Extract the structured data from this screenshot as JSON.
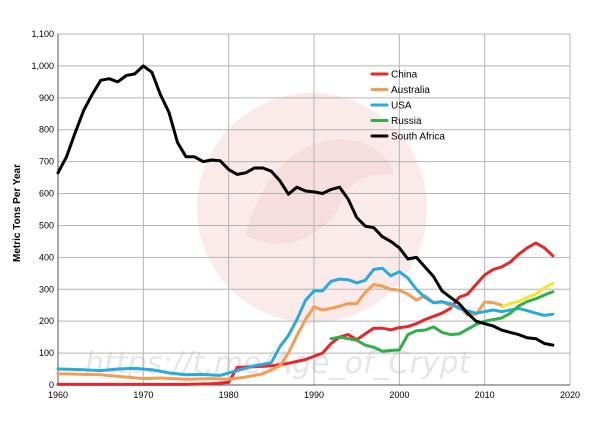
{
  "chart_data": {
    "type": "line",
    "title": "",
    "xlabel": "",
    "ylabel": "Metric Tons Per Year",
    "xlim": [
      1960,
      2020
    ],
    "ylim": [
      0,
      1100
    ],
    "x_ticks": [
      "1960",
      "1970",
      "1980",
      "1990",
      "2000",
      "2010",
      "2020"
    ],
    "y_ticks": [
      "0",
      "100",
      "200",
      "300",
      "400",
      "500",
      "600",
      "700",
      "800",
      "900",
      "1,000",
      "1,100"
    ],
    "grid": true,
    "legend_position": "top-right",
    "watermark": "https://t.me/Age_of_Crypt",
    "series": [
      {
        "name": "China",
        "color": "#e8262a",
        "points": [
          [
            1960,
            2
          ],
          [
            1965,
            2
          ],
          [
            1970,
            2
          ],
          [
            1975,
            2
          ],
          [
            1978,
            4
          ],
          [
            1980,
            8
          ],
          [
            1981,
            55
          ],
          [
            1983,
            57
          ],
          [
            1985,
            60
          ],
          [
            1987,
            68
          ],
          [
            1989,
            80
          ],
          [
            1991,
            100
          ],
          [
            1992,
            130
          ],
          [
            1993,
            150
          ],
          [
            1994,
            158
          ],
          [
            1995,
            142
          ],
          [
            1996,
            160
          ],
          [
            1997,
            178
          ],
          [
            1998,
            178
          ],
          [
            1999,
            173
          ],
          [
            2000,
            180
          ],
          [
            2001,
            183
          ],
          [
            2002,
            192
          ],
          [
            2003,
            205
          ],
          [
            2004,
            215
          ],
          [
            2005,
            225
          ],
          [
            2006,
            240
          ],
          [
            2007,
            275
          ],
          [
            2008,
            285
          ],
          [
            2009,
            315
          ],
          [
            2010,
            345
          ],
          [
            2011,
            362
          ],
          [
            2012,
            370
          ],
          [
            2013,
            385
          ],
          [
            2014,
            410
          ],
          [
            2015,
            430
          ],
          [
            2016,
            445
          ],
          [
            2017,
            430
          ],
          [
            2018,
            405
          ]
        ]
      },
      {
        "name": "Australia",
        "color": "#f39c52",
        "points": [
          [
            1960,
            35
          ],
          [
            1965,
            32
          ],
          [
            1970,
            20
          ],
          [
            1972,
            22
          ],
          [
            1975,
            18
          ],
          [
            1978,
            20
          ],
          [
            1980,
            18
          ],
          [
            1982,
            25
          ],
          [
            1984,
            35
          ],
          [
            1986,
            60
          ],
          [
            1987,
            100
          ],
          [
            1988,
            155
          ],
          [
            1989,
            205
          ],
          [
            1990,
            245
          ],
          [
            1991,
            235
          ],
          [
            1992,
            240
          ],
          [
            1993,
            247
          ],
          [
            1994,
            255
          ],
          [
            1995,
            255
          ],
          [
            1996,
            290
          ],
          [
            1997,
            315
          ],
          [
            1998,
            310
          ],
          [
            1999,
            300
          ],
          [
            2000,
            297
          ],
          [
            2001,
            285
          ],
          [
            2002,
            266
          ],
          [
            2003,
            280
          ],
          [
            2004,
            258
          ],
          [
            2005,
            262
          ],
          [
            2006,
            248
          ],
          [
            2007,
            246
          ],
          [
            2008,
            218
          ],
          [
            2009,
            222
          ],
          [
            2010,
            260
          ],
          [
            2011,
            258
          ],
          [
            2012,
            250
          ]
        ]
      },
      {
        "name": "USA",
        "color": "#2aa9e0",
        "points": [
          [
            1960,
            50
          ],
          [
            1963,
            48
          ],
          [
            1965,
            45
          ],
          [
            1967,
            50
          ],
          [
            1969,
            52
          ],
          [
            1971,
            48
          ],
          [
            1973,
            38
          ],
          [
            1975,
            32
          ],
          [
            1977,
            33
          ],
          [
            1979,
            30
          ],
          [
            1981,
            45
          ],
          [
            1983,
            60
          ],
          [
            1985,
            70
          ],
          [
            1986,
            120
          ],
          [
            1987,
            155
          ],
          [
            1988,
            205
          ],
          [
            1989,
            265
          ],
          [
            1990,
            295
          ],
          [
            1991,
            295
          ],
          [
            1992,
            325
          ],
          [
            1993,
            332
          ],
          [
            1994,
            330
          ],
          [
            1995,
            320
          ],
          [
            1996,
            328
          ],
          [
            1997,
            362
          ],
          [
            1998,
            366
          ],
          [
            1999,
            342
          ],
          [
            2000,
            355
          ],
          [
            2001,
            335
          ],
          [
            2002,
            300
          ],
          [
            2003,
            275
          ],
          [
            2004,
            258
          ],
          [
            2005,
            260
          ],
          [
            2006,
            255
          ],
          [
            2007,
            240
          ],
          [
            2008,
            232
          ],
          [
            2009,
            225
          ],
          [
            2010,
            230
          ],
          [
            2011,
            235
          ],
          [
            2012,
            230
          ],
          [
            2013,
            235
          ],
          [
            2014,
            240
          ],
          [
            2015,
            233
          ],
          [
            2016,
            225
          ],
          [
            2017,
            218
          ],
          [
            2018,
            222
          ]
        ]
      },
      {
        "name": "Russia",
        "color": "#2fb04a",
        "points": [
          [
            1992,
            145
          ],
          [
            1993,
            150
          ],
          [
            1994,
            145
          ],
          [
            1995,
            140
          ],
          [
            1996,
            125
          ],
          [
            1997,
            118
          ],
          [
            1998,
            106
          ],
          [
            1999,
            108
          ],
          [
            2000,
            110
          ],
          [
            2001,
            158
          ],
          [
            2002,
            170
          ],
          [
            2003,
            172
          ],
          [
            2004,
            182
          ],
          [
            2005,
            165
          ],
          [
            2006,
            158
          ],
          [
            2007,
            160
          ],
          [
            2008,
            175
          ],
          [
            2009,
            190
          ],
          [
            2010,
            200
          ],
          [
            2011,
            205
          ],
          [
            2012,
            210
          ],
          [
            2013,
            225
          ],
          [
            2014,
            248
          ],
          [
            2015,
            262
          ],
          [
            2016,
            270
          ],
          [
            2017,
            282
          ],
          [
            2018,
            292
          ]
        ]
      },
      {
        "name": "South Africa",
        "color": "#000000",
        "points": [
          [
            1960,
            665
          ],
          [
            1961,
            715
          ],
          [
            1962,
            790
          ],
          [
            1963,
            860
          ],
          [
            1964,
            910
          ],
          [
            1965,
            955
          ],
          [
            1966,
            960
          ],
          [
            1967,
            950
          ],
          [
            1968,
            970
          ],
          [
            1969,
            975
          ],
          [
            1970,
            1000
          ],
          [
            1971,
            980
          ],
          [
            1972,
            910
          ],
          [
            1973,
            855
          ],
          [
            1974,
            760
          ],
          [
            1975,
            715
          ],
          [
            1976,
            715
          ],
          [
            1977,
            700
          ],
          [
            1978,
            705
          ],
          [
            1979,
            703
          ],
          [
            1980,
            675
          ],
          [
            1981,
            660
          ],
          [
            1982,
            665
          ],
          [
            1983,
            680
          ],
          [
            1984,
            680
          ],
          [
            1985,
            670
          ],
          [
            1986,
            640
          ],
          [
            1987,
            598
          ],
          [
            1988,
            620
          ],
          [
            1989,
            608
          ],
          [
            1990,
            605
          ],
          [
            1991,
            600
          ],
          [
            1992,
            613
          ],
          [
            1993,
            620
          ],
          [
            1994,
            583
          ],
          [
            1995,
            525
          ],
          [
            1996,
            498
          ],
          [
            1997,
            493
          ],
          [
            1998,
            465
          ],
          [
            1999,
            450
          ],
          [
            2000,
            430
          ],
          [
            2001,
            395
          ],
          [
            2002,
            400
          ],
          [
            2003,
            370
          ],
          [
            2004,
            340
          ],
          [
            2005,
            295
          ],
          [
            2006,
            275
          ],
          [
            2007,
            255
          ],
          [
            2008,
            225
          ],
          [
            2009,
            200
          ],
          [
            2010,
            192
          ],
          [
            2011,
            185
          ],
          [
            2012,
            172
          ],
          [
            2013,
            165
          ],
          [
            2014,
            158
          ],
          [
            2015,
            148
          ],
          [
            2016,
            145
          ],
          [
            2017,
            130
          ],
          [
            2018,
            125
          ]
        ]
      },
      {
        "color": "#f5e52a",
        "points": [
          [
            2012,
            245
          ],
          [
            2013,
            255
          ],
          [
            2014,
            262
          ],
          [
            2015,
            275
          ],
          [
            2016,
            285
          ],
          [
            2017,
            305
          ],
          [
            2018,
            318
          ]
        ]
      }
    ]
  },
  "colors": {
    "grid": "#b4b4b4",
    "axis": "#555555",
    "watermark_logo": "#f6dede"
  }
}
